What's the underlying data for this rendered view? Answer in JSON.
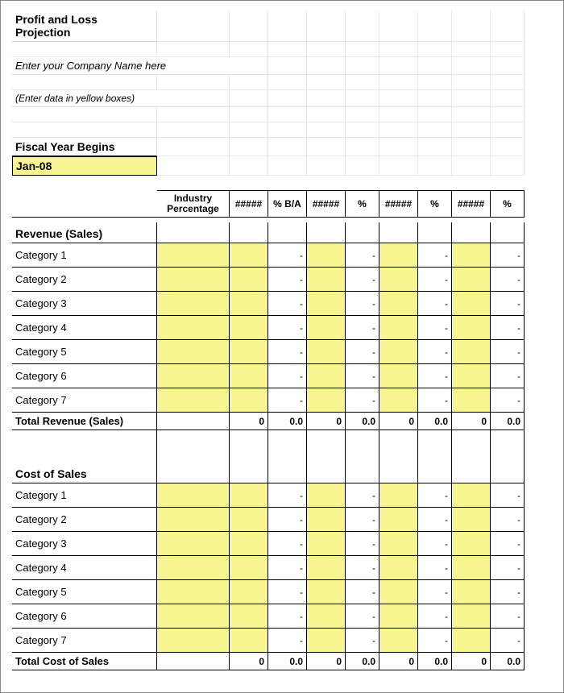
{
  "title": "Profit and Loss Projection",
  "company_placeholder": "Enter your Company Name here",
  "note": "(Enter data in yellow boxes)",
  "fiscal_label": "Fiscal Year Begins",
  "fiscal_value": "Jan-08",
  "columns": {
    "c1_line1": "Industry",
    "c1_line2": "Percentage",
    "c2": "#####",
    "c3": "% B/A",
    "c4": "#####",
    "c5": "%",
    "c6": "#####",
    "c7": "%",
    "c8": "#####",
    "c9": "%"
  },
  "yellow_color": "#f6f58f",
  "dash": "-",
  "revenue": {
    "header": "Revenue (Sales)",
    "rows": [
      "Category 1",
      "Category 2",
      "Category 3",
      "Category 4",
      "Category 5",
      "Category 6",
      "Category 7"
    ],
    "total_label": "Total Revenue (Sales)",
    "totals": [
      "",
      "0",
      "0.0",
      "0",
      "0.0",
      "0",
      "0.0",
      "0",
      "0.0"
    ]
  },
  "cost": {
    "header": "Cost of Sales",
    "rows": [
      "Category 1",
      "Category 2",
      "Category 3",
      "Category 4",
      "Category 5",
      "Category 6",
      "Category 7"
    ],
    "total_label": "Total Cost of Sales",
    "totals": [
      "",
      "0",
      "0.0",
      "0",
      "0.0",
      "0",
      "0.0",
      "0",
      "0.0"
    ]
  }
}
